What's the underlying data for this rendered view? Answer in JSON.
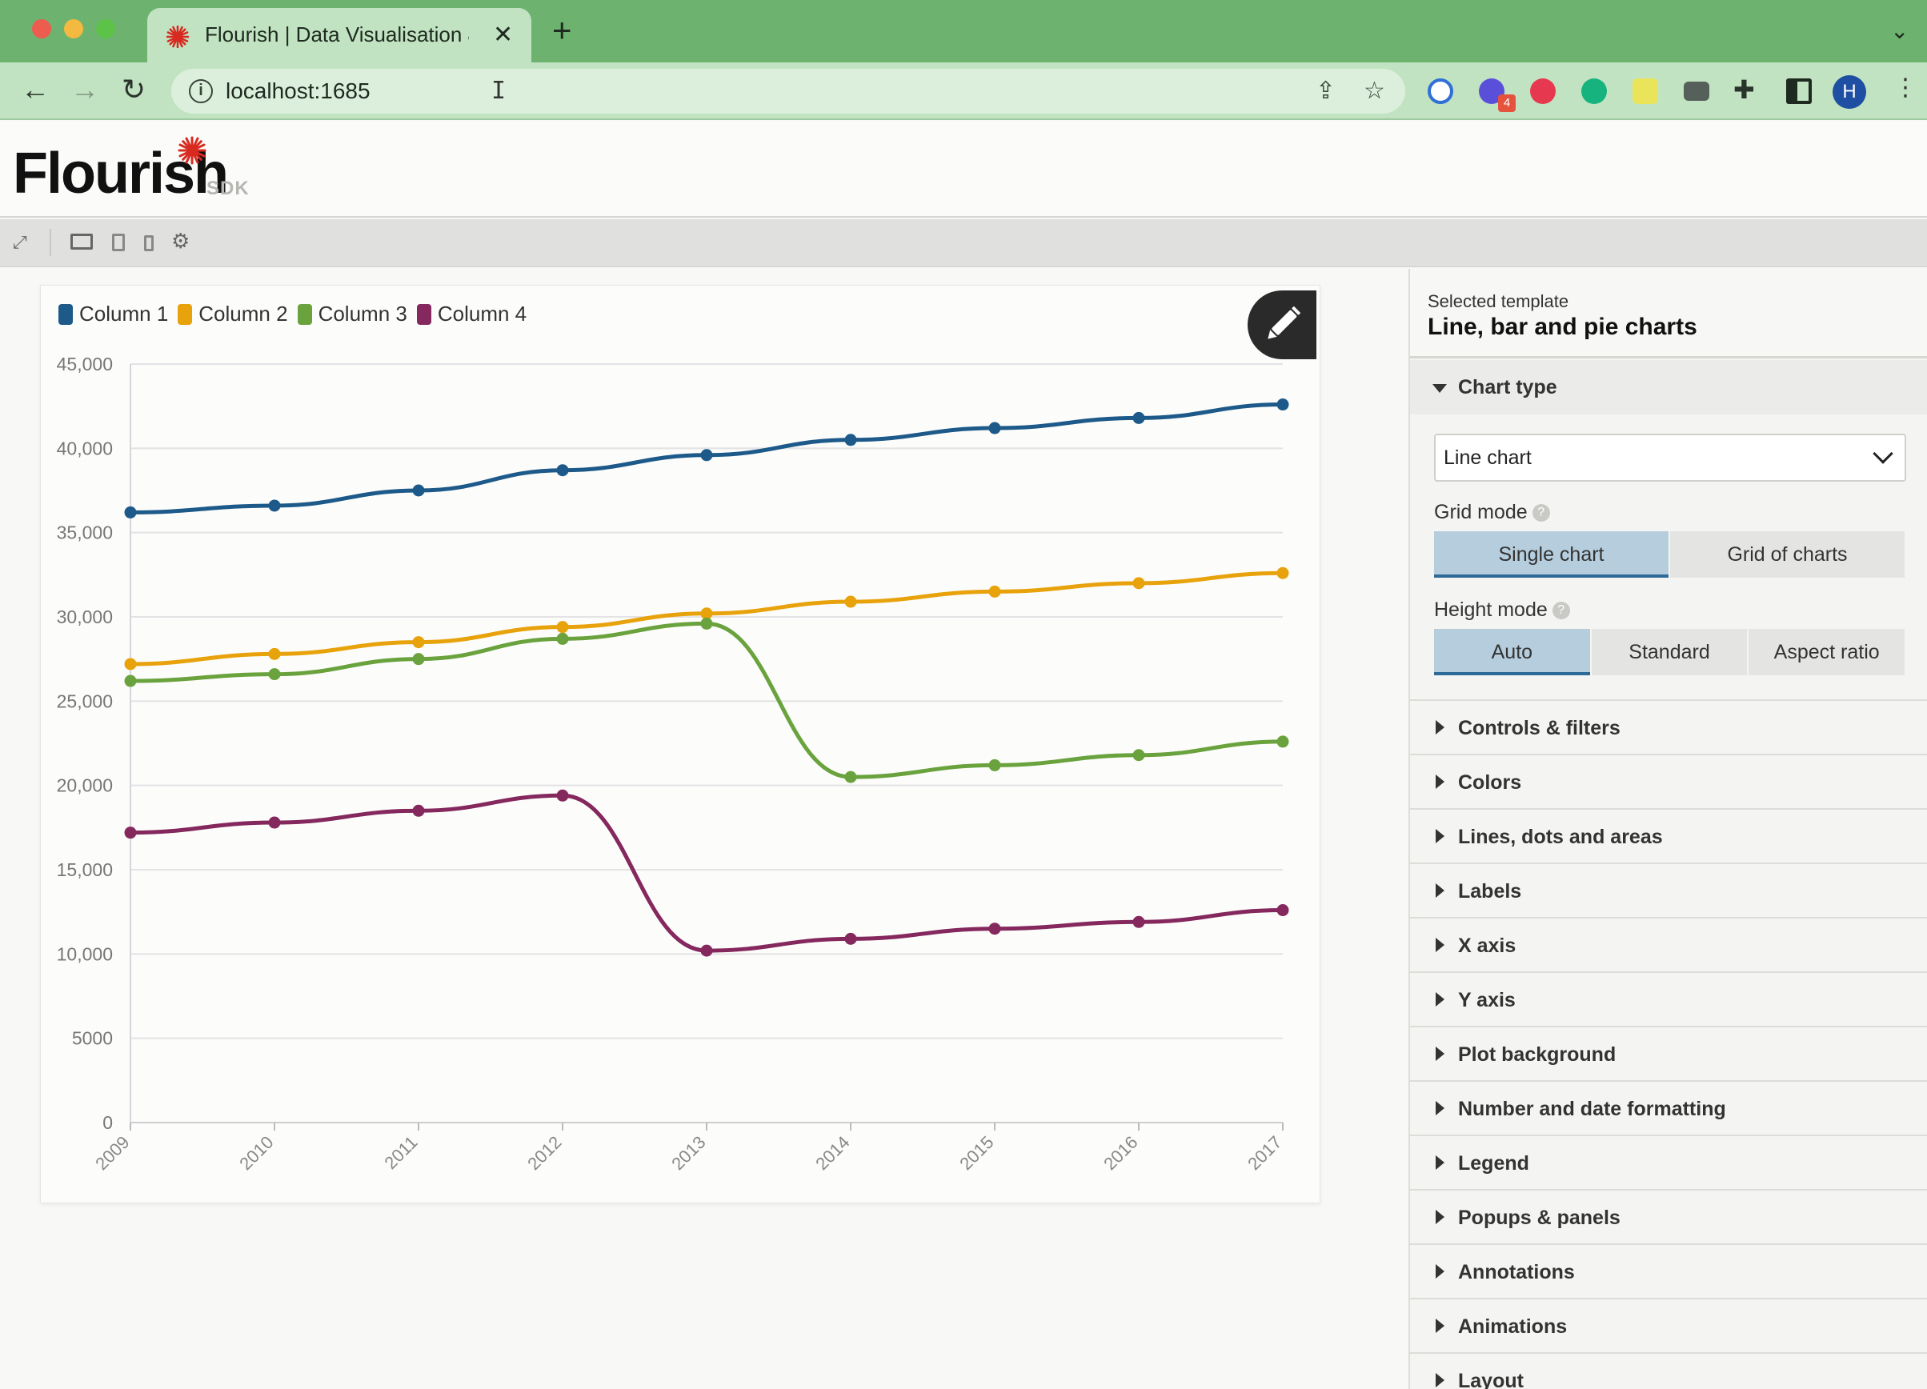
{
  "browser": {
    "tab_title": "Flourish | Data Visualisation & Storytelling",
    "tab_close": "✕",
    "new_tab": "+",
    "url": "localhost:1685",
    "avatar_initial": "H",
    "extension_badge": "4"
  },
  "app": {
    "logo": "Flourish",
    "logo_suffix": "SDK",
    "brand_color": "#d82a20"
  },
  "chart_data": {
    "type": "line",
    "x": [
      "2009",
      "2010",
      "2011",
      "2012",
      "2013",
      "2014",
      "2015",
      "2016",
      "2017"
    ],
    "series": [
      {
        "name": "Column 1",
        "color": "#1d5a8a",
        "values": [
          36200,
          36600,
          37500,
          38700,
          39600,
          40500,
          41200,
          41800,
          42600
        ]
      },
      {
        "name": "Column 2",
        "color": "#e8a20c",
        "values": [
          27200,
          27800,
          28500,
          29400,
          30200,
          30900,
          31500,
          32000,
          32600
        ]
      },
      {
        "name": "Column 3",
        "color": "#6aa33e",
        "values": [
          26200,
          26600,
          27500,
          28700,
          29600,
          20500,
          21200,
          21800,
          22600
        ]
      },
      {
        "name": "Column 4",
        "color": "#84285e",
        "values": [
          17200,
          17800,
          18500,
          19400,
          10200,
          10900,
          11500,
          11900,
          12600
        ]
      }
    ],
    "y_ticks": [
      "45,000",
      "40,000",
      "35,000",
      "30,000",
      "25,000",
      "20,000",
      "15,000",
      "10,000",
      "5000",
      "0"
    ],
    "ylim": [
      0,
      45000
    ],
    "grid": true,
    "legend_position": "top-left",
    "xlabel": "",
    "ylabel": ""
  },
  "panel": {
    "subtitle": "Selected template",
    "title": "Line, bar and pie charts",
    "open_section": "Chart type",
    "chart_type_value": "Line chart",
    "grid_mode_label": "Grid mode",
    "grid_mode_options": [
      "Single chart",
      "Grid of charts"
    ],
    "height_mode_label": "Height mode",
    "height_mode_options": [
      "Auto",
      "Standard",
      "Aspect ratio"
    ],
    "help_glyph": "?",
    "sections": [
      "Controls & filters",
      "Colors",
      "Lines, dots and areas",
      "Labels",
      "X axis",
      "Y axis",
      "Plot background",
      "Number and date formatting",
      "Legend",
      "Popups & panels",
      "Annotations",
      "Animations",
      "Layout"
    ]
  }
}
